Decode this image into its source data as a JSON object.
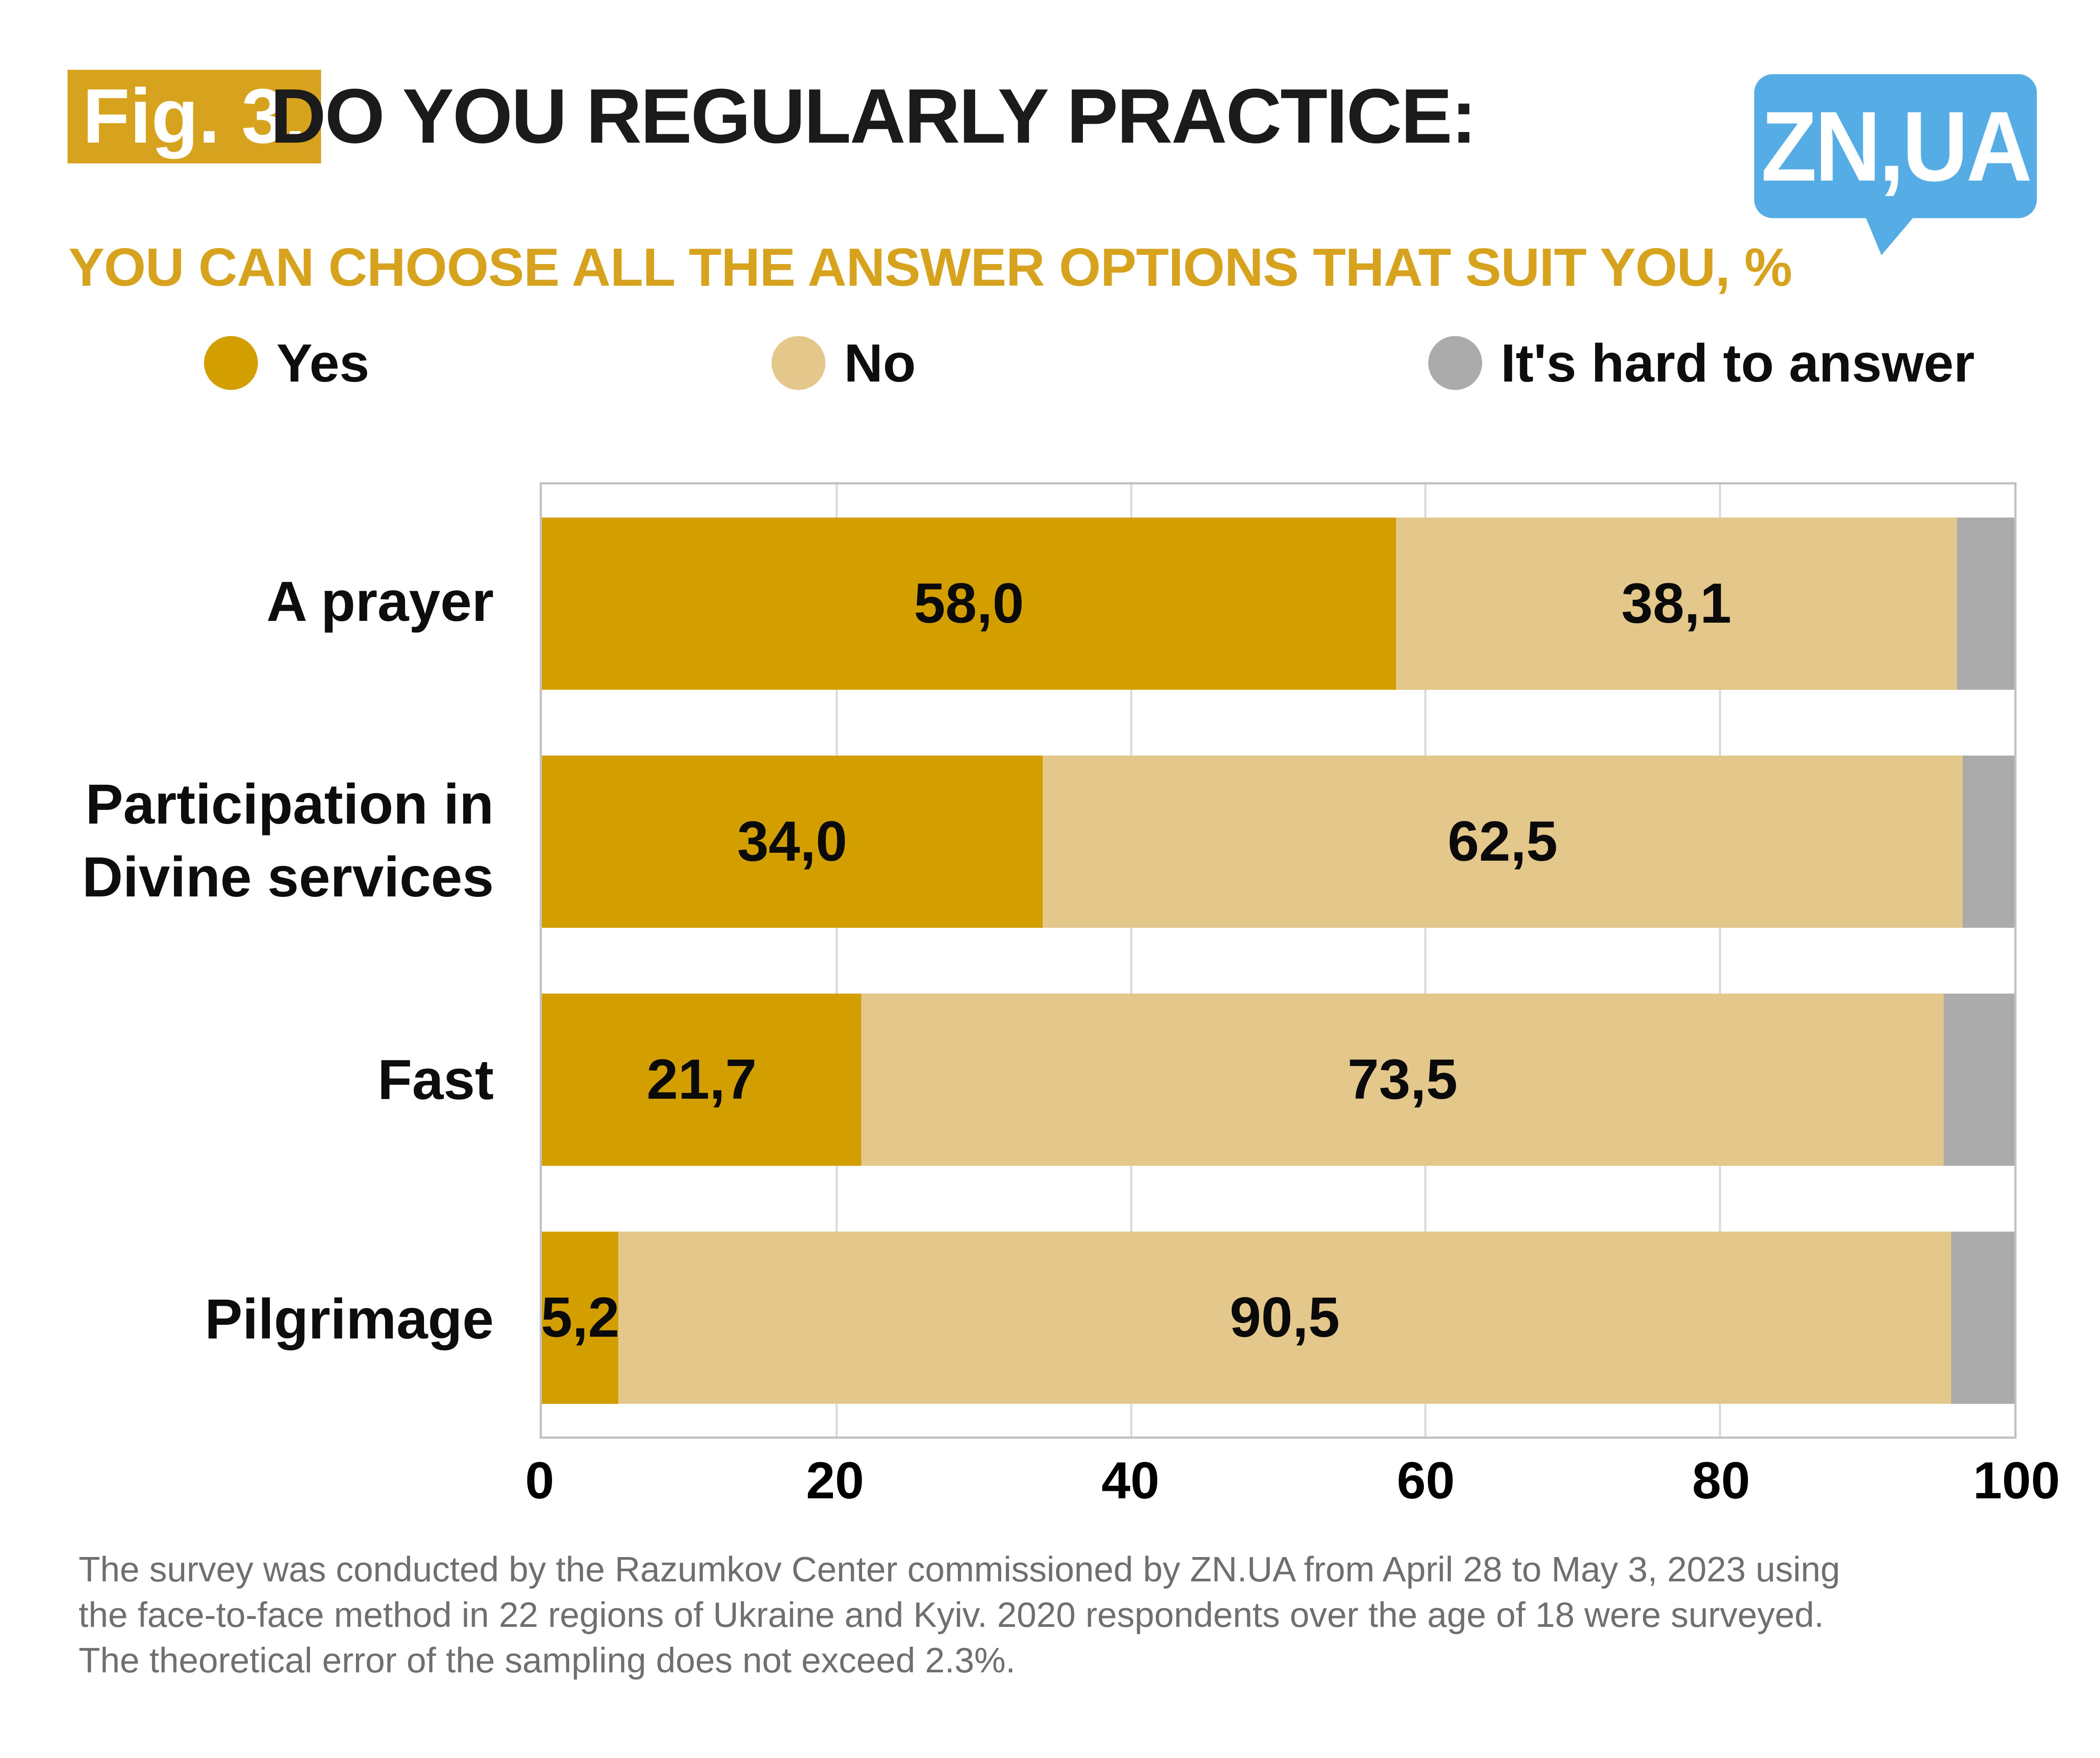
{
  "header": {
    "figure_label": "Fig. 3.",
    "title": "DO YOU REGULARLY PRACTICE:",
    "subtitle": "YOU CAN CHOOSE ALL THE ANSWER OPTIONS THAT SUIT YOU, %"
  },
  "logo": {
    "text": "ZN,UA",
    "color": "#56ACE4"
  },
  "colors": {
    "yes": "#D29E00",
    "no": "#E4C78B",
    "hard_to_answer": "#ABABAB",
    "accent_gold": "#D7A31F",
    "footnote_gray": "#6F6F6F"
  },
  "legend": {
    "items": [
      {
        "label": "Yes",
        "color": "#D29E00"
      },
      {
        "label": "No",
        "color": "#E4C78B"
      },
      {
        "label": "It's hard to answer",
        "color": "#ABABAB"
      }
    ]
  },
  "chart_data": {
    "type": "bar",
    "orientation": "horizontal",
    "stacked": true,
    "unit": "%",
    "xlim": [
      0,
      100
    ],
    "x_ticks": [
      "0",
      "20",
      "40",
      "60",
      "80",
      "100"
    ],
    "grid": true,
    "legend_position": "top",
    "categories": [
      "A prayer",
      "Participation in Divine services",
      "Fast",
      "Pilgrimage"
    ],
    "category_display_lines": [
      [
        "A prayer"
      ],
      [
        "Participation in",
        "Divine services"
      ],
      [
        "Fast"
      ],
      [
        "Pilgrimage"
      ]
    ],
    "series": [
      {
        "name": "Yes",
        "color": "#D29E00",
        "values": [
          58.0,
          34.0,
          21.7,
          5.2
        ],
        "display_labels": [
          "58,0",
          "34,0",
          "21,7",
          "5,2"
        ]
      },
      {
        "name": "No",
        "color": "#E4C78B",
        "values": [
          38.1,
          62.5,
          73.5,
          90.5
        ],
        "display_labels": [
          "38,1",
          "62,5",
          "73,5",
          "90,5"
        ]
      },
      {
        "name": "It's hard to answer",
        "color": "#ABABAB",
        "values": [
          3.9,
          3.5,
          4.8,
          4.3
        ],
        "display_labels": [
          "",
          "",
          "",
          ""
        ]
      }
    ]
  },
  "footnote": {
    "lines": [
      "The survey was conducted by the Razumkov Center commissioned by ZN.UA from April 28 to May 3, 2023 using",
      "the face-to-face method in 22 regions of Ukraine and Kyiv. 2020 respondents over the age of 18 were surveyed.",
      "The theoretical error of the sampling does not exceed 2.3%."
    ]
  }
}
